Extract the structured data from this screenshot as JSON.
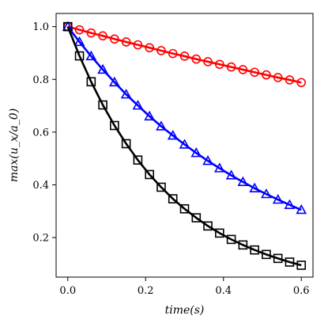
{
  "chart_data": {
    "type": "line",
    "title": "",
    "xlabel": "time(s)",
    "ylabel": "max(u_x/a_0)",
    "xlim": [
      -0.03,
      0.63
    ],
    "ylim": [
      0.05,
      1.05
    ],
    "grid": false,
    "legend": "none",
    "xticks": [
      0.0,
      0.2,
      0.4,
      0.6
    ],
    "xtick_labels": [
      "0.0",
      "0.2",
      "0.4",
      "0.6"
    ],
    "yticks": [
      0.2,
      0.4,
      0.6,
      0.8,
      1.0
    ],
    "ytick_labels": [
      "0.2",
      "0.4",
      "0.6",
      "0.8",
      "1.0"
    ],
    "series": [
      {
        "color": "#ff0000",
        "marker": "circle",
        "x": [
          0.0,
          0.03,
          0.06,
          0.09,
          0.12,
          0.15,
          0.18,
          0.21,
          0.24,
          0.27,
          0.3,
          0.33,
          0.36,
          0.39,
          0.42,
          0.45,
          0.48,
          0.51,
          0.54,
          0.57,
          0.6
        ],
        "y": [
          1.0,
          0.988,
          0.976,
          0.965,
          0.953,
          0.942,
          0.931,
          0.92,
          0.909,
          0.898,
          0.888,
          0.877,
          0.867,
          0.857,
          0.847,
          0.837,
          0.827,
          0.817,
          0.807,
          0.798,
          0.788
        ]
      },
      {
        "color": "#0000ff",
        "marker": "triangle",
        "x": [
          0.0,
          0.03,
          0.06,
          0.09,
          0.12,
          0.15,
          0.18,
          0.21,
          0.24,
          0.27,
          0.3,
          0.33,
          0.36,
          0.39,
          0.42,
          0.45,
          0.48,
          0.51,
          0.54,
          0.57,
          0.6
        ],
        "y": [
          1.0,
          0.942,
          0.888,
          0.837,
          0.789,
          0.743,
          0.701,
          0.66,
          0.622,
          0.587,
          0.553,
          0.521,
          0.491,
          0.463,
          0.436,
          0.411,
          0.387,
          0.365,
          0.344,
          0.324,
          0.305
        ]
      },
      {
        "color": "#000000",
        "marker": "square",
        "x": [
          0.0,
          0.03,
          0.06,
          0.09,
          0.12,
          0.15,
          0.18,
          0.21,
          0.24,
          0.27,
          0.3,
          0.33,
          0.36,
          0.39,
          0.42,
          0.45,
          0.48,
          0.51,
          0.54,
          0.57,
          0.6
        ],
        "y": [
          1.0,
          0.889,
          0.791,
          0.703,
          0.625,
          0.556,
          0.494,
          0.439,
          0.391,
          0.347,
          0.309,
          0.275,
          0.244,
          0.217,
          0.193,
          0.172,
          0.153,
          0.136,
          0.121,
          0.107,
          0.095
        ]
      }
    ]
  }
}
